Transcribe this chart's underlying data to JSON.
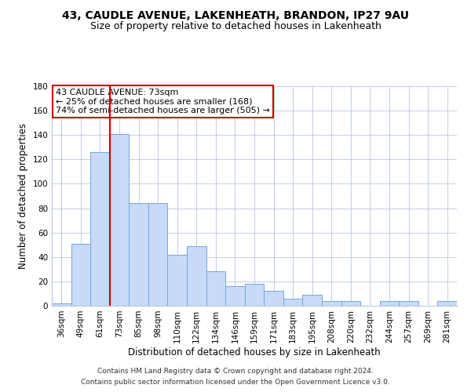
{
  "title": "43, CAUDLE AVENUE, LAKENHEATH, BRANDON, IP27 9AU",
  "subtitle": "Size of property relative to detached houses in Lakenheath",
  "xlabel": "Distribution of detached houses by size in Lakenheath",
  "ylabel": "Number of detached properties",
  "footer_line1": "Contains HM Land Registry data © Crown copyright and database right 2024.",
  "footer_line2": "Contains public sector information licensed under the Open Government Licence v3.0.",
  "annotation_title": "43 CAUDLE AVENUE: 73sqm",
  "annotation_line2": "← 25% of detached houses are smaller (168)",
  "annotation_line3": "74% of semi-detached houses are larger (505) →",
  "bar_labels": [
    "36sqm",
    "49sqm",
    "61sqm",
    "73sqm",
    "85sqm",
    "98sqm",
    "110sqm",
    "122sqm",
    "134sqm",
    "146sqm",
    "159sqm",
    "171sqm",
    "183sqm",
    "195sqm",
    "208sqm",
    "220sqm",
    "232sqm",
    "244sqm",
    "257sqm",
    "269sqm",
    "281sqm"
  ],
  "bar_values": [
    2,
    51,
    126,
    141,
    84,
    84,
    42,
    49,
    28,
    16,
    18,
    12,
    6,
    9,
    4,
    4,
    0,
    4,
    4,
    0,
    4
  ],
  "bar_color": "#c9daf8",
  "bar_edge_color": "#6fa8dc",
  "vline_x_index": 3,
  "vline_color": "#cc0000",
  "ylim": [
    0,
    180
  ],
  "yticks": [
    0,
    20,
    40,
    60,
    80,
    100,
    120,
    140,
    160,
    180
  ],
  "bg_color": "#ffffff",
  "grid_color": "#b8c8dc",
  "title_fontsize": 10,
  "subtitle_fontsize": 9,
  "axis_label_fontsize": 8.5,
  "tick_fontsize": 7.5,
  "annotation_fontsize": 8,
  "footer_fontsize": 6.5
}
